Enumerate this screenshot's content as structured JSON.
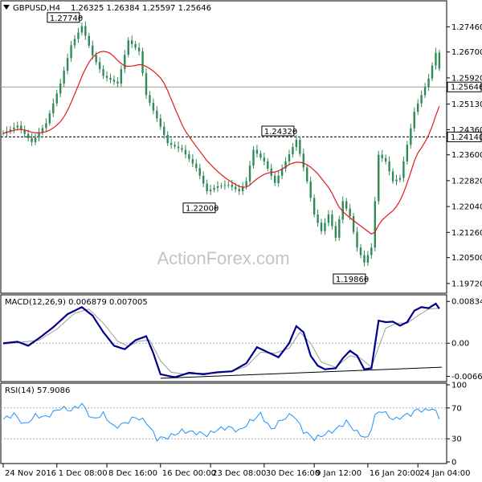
{
  "chart_data": [
    {
      "type": "candlestick",
      "title": "GBPUSD,H4",
      "ohlc_values": [
        "1.26325",
        "1.26384",
        "1.25597",
        "1.25646"
      ],
      "watermark": "ActionForex.com",
      "ylim": [
        1.1945,
        1.2822
      ],
      "y_ticks": [
        "1.27460",
        "1.26700",
        "1.25920",
        "1.25130",
        "1.24360",
        "1.23600",
        "1.22820",
        "1.22040",
        "1.21260",
        "1.20500",
        "1.19720"
      ],
      "y_tick_values": [
        1.2746,
        1.267,
        1.2592,
        1.2513,
        1.2436,
        1.236,
        1.2282,
        1.2204,
        1.2126,
        1.205,
        1.1972
      ],
      "price_marker": {
        "label": "1.25646",
        "value": 1.25646
      },
      "support_marker": {
        "label": "1.24140",
        "value": 1.2414
      },
      "annotations": [
        {
          "label": "1.27740",
          "value": 1.2774,
          "x_index": 22
        },
        {
          "label": "1.24320",
          "value": 1.2432,
          "x_index": 82
        },
        {
          "label": "1.22000",
          "value": 1.22,
          "x_index": 60
        },
        {
          "label": "1.19860",
          "value": 1.1986,
          "x_index": 102
        }
      ],
      "close_anchors": [
        [
          0,
          1.2425
        ],
        [
          4,
          1.2448
        ],
        [
          8,
          1.2398
        ],
        [
          12,
          1.2455
        ],
        [
          16,
          1.2575
        ],
        [
          19,
          1.269
        ],
        [
          22,
          1.2748
        ],
        [
          25,
          1.266
        ],
        [
          28,
          1.2598
        ],
        [
          32,
          1.2575
        ],
        [
          35,
          1.2705
        ],
        [
          38,
          1.2672
        ],
        [
          40,
          1.254
        ],
        [
          43,
          1.247
        ],
        [
          46,
          1.2395
        ],
        [
          50,
          1.2375
        ],
        [
          54,
          1.232
        ],
        [
          57,
          1.225
        ],
        [
          60,
          1.2265
        ],
        [
          63,
          1.227
        ],
        [
          66,
          1.225
        ],
        [
          68,
          1.228
        ],
        [
          70,
          1.2375
        ],
        [
          73,
          1.234
        ],
        [
          76,
          1.2275
        ],
        [
          79,
          1.234
        ],
        [
          82,
          1.2405
        ],
        [
          85,
          1.228
        ],
        [
          87,
          1.218
        ],
        [
          89,
          1.213
        ],
        [
          91,
          1.218
        ],
        [
          93,
          1.211
        ],
        [
          95,
          1.222
        ],
        [
          97,
          1.2175
        ],
        [
          99,
          1.208
        ],
        [
          101,
          1.2035
        ],
        [
          103,
          1.208
        ],
        [
          105,
          1.236
        ],
        [
          107,
          1.234
        ],
        [
          109,
          1.228
        ],
        [
          111,
          1.229
        ],
        [
          113,
          1.239
        ],
        [
          115,
          1.249
        ],
        [
          117,
          1.254
        ],
        [
          119,
          1.259
        ],
        [
          121,
          1.2668
        ],
        [
          122,
          1.262
        ]
      ]
    },
    {
      "type": "line",
      "title": "MACD(12,26,9) 0.006879 0.007005",
      "ylim": [
        -0.0075,
        0.0095
      ],
      "y_ticks": [
        "0.008341",
        "0.00",
        "-0.00661"
      ],
      "y_tick_values": [
        0.008341,
        0,
        -0.00661
      ],
      "series": [
        {
          "name": "",
          "anchors": [
            [
              0,
              0.0
            ],
            [
              4,
              0.0003
            ],
            [
              7,
              -0.0005
            ],
            [
              10,
              0.001
            ],
            [
              14,
              0.0032
            ],
            [
              18,
              0.0058
            ],
            [
              22,
              0.0072
            ],
            [
              25,
              0.0055
            ],
            [
              28,
              0.0022
            ],
            [
              31,
              -0.0005
            ],
            [
              34,
              -0.0012
            ],
            [
              37,
              0.0006
            ],
            [
              40,
              0.0014
            ],
            [
              42,
              -0.002
            ],
            [
              44,
              -0.0062
            ],
            [
              48,
              -0.0068
            ],
            [
              52,
              -0.0059
            ],
            [
              56,
              -0.0062
            ],
            [
              60,
              -0.0058
            ],
            [
              64,
              -0.0056
            ],
            [
              68,
              -0.004
            ],
            [
              71,
              -0.0008
            ],
            [
              74,
              -0.0018
            ],
            [
              77,
              -0.0028
            ],
            [
              80,
              0.0
            ],
            [
              82,
              0.0034
            ],
            [
              84,
              0.0022
            ],
            [
              86,
              -0.0025
            ],
            [
              88,
              -0.0045
            ],
            [
              90,
              -0.0052
            ],
            [
              93,
              -0.005
            ],
            [
              95,
              -0.003
            ],
            [
              97,
              -0.0015
            ],
            [
              99,
              -0.0025
            ],
            [
              101,
              -0.0052
            ],
            [
              103,
              -0.005
            ],
            [
              105,
              0.0045
            ],
            [
              107,
              0.0042
            ],
            [
              109,
              0.0043
            ],
            [
              111,
              0.0035
            ],
            [
              113,
              0.0042
            ],
            [
              115,
              0.0065
            ],
            [
              117,
              0.0072
            ],
            [
              119,
              0.007
            ],
            [
              121,
              0.0079
            ],
            [
              122,
              0.0069
            ]
          ]
        },
        {
          "name": "",
          "anchors": [
            [
              0,
              -0.0002
            ],
            [
              5,
              0.0002
            ],
            [
              10,
              0.0006
            ],
            [
              15,
              0.0028
            ],
            [
              20,
              0.006
            ],
            [
              24,
              0.0068
            ],
            [
              28,
              0.004
            ],
            [
              32,
              0.0004
            ],
            [
              35,
              -0.0006
            ],
            [
              38,
              0.0004
            ],
            [
              41,
              0.0006
            ],
            [
              44,
              -0.0035
            ],
            [
              47,
              -0.0058
            ],
            [
              51,
              -0.0062
            ],
            [
              56,
              -0.006
            ],
            [
              60,
              -0.0058
            ],
            [
              64,
              -0.0056
            ],
            [
              68,
              -0.0046
            ],
            [
              72,
              -0.0018
            ],
            [
              76,
              -0.002
            ],
            [
              80,
              -0.001
            ],
            [
              83,
              0.0022
            ],
            [
              86,
              0.0
            ],
            [
              89,
              -0.0038
            ],
            [
              93,
              -0.0048
            ],
            [
              97,
              -0.0025
            ],
            [
              100,
              -0.003
            ],
            [
              103,
              -0.0048
            ],
            [
              105,
              -0.0008
            ],
            [
              107,
              0.003
            ],
            [
              110,
              0.004
            ],
            [
              113,
              0.004
            ],
            [
              116,
              0.0055
            ],
            [
              119,
              0.0068
            ],
            [
              122,
              0.007
            ]
          ]
        }
      ],
      "trendline_values": [
        -0.007,
        -0.0048
      ]
    },
    {
      "type": "line",
      "title": "RSI(14) 57.9086",
      "ylim": [
        0,
        100
      ],
      "y_ticks": [
        "100",
        "70",
        "30",
        "0"
      ],
      "y_tick_values": [
        100,
        70,
        30,
        0
      ],
      "levels": [
        70,
        30
      ],
      "series": [
        {
          "name": "",
          "anchors": [
            [
              0,
              55
            ],
            [
              3,
              62
            ],
            [
              6,
              48
            ],
            [
              9,
              60
            ],
            [
              12,
              58
            ],
            [
              16,
              70
            ],
            [
              19,
              67
            ],
            [
              22,
              75
            ],
            [
              25,
              55
            ],
            [
              28,
              62
            ],
            [
              31,
              45
            ],
            [
              34,
              50
            ],
            [
              37,
              58
            ],
            [
              40,
              52
            ],
            [
              43,
              30
            ],
            [
              46,
              32
            ],
            [
              50,
              40
            ],
            [
              54,
              38
            ],
            [
              57,
              35
            ],
            [
              60,
              42
            ],
            [
              63,
              45
            ],
            [
              66,
              40
            ],
            [
              69,
              52
            ],
            [
              72,
              62
            ],
            [
              75,
              42
            ],
            [
              78,
              55
            ],
            [
              81,
              62
            ],
            [
              84,
              40
            ],
            [
              87,
              30
            ],
            [
              90,
              36
            ],
            [
              93,
              42
            ],
            [
              96,
              52
            ],
            [
              99,
              38
            ],
            [
              102,
              30
            ],
            [
              104,
              60
            ],
            [
              106,
              67
            ],
            [
              108,
              58
            ],
            [
              110,
              55
            ],
            [
              112,
              60
            ],
            [
              114,
              62
            ],
            [
              116,
              68
            ],
            [
              118,
              66
            ],
            [
              120,
              70
            ],
            [
              122,
              58
            ]
          ]
        }
      ]
    }
  ],
  "x_axis": {
    "labels": [
      "24 Nov 2016",
      "1 Dec 08:00",
      "8 Dec 16:00",
      "16 Dec 00:00",
      "23 Dec 08:00",
      "30 Dec 16:00",
      "9 Jan 12:00",
      "16 Jan 20:00",
      "24 Jan 04:00"
    ],
    "label_indices": [
      0,
      15,
      29,
      44,
      58,
      73,
      87,
      102,
      116
    ]
  },
  "colors": {
    "candle": "#2e8b57",
    "ma": "#e11a1a",
    "macd": "#00008b",
    "signal": "#9e9e9e",
    "rsi": "#1e90ff",
    "grid": "#000000"
  }
}
